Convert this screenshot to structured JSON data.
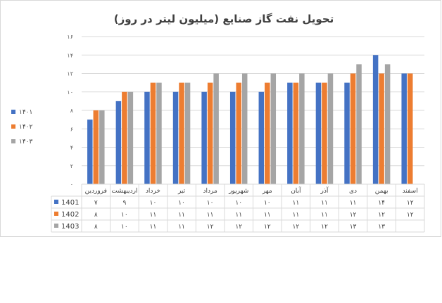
{
  "chart_data": {
    "type": "bar",
    "title": "تحویل نفت گاز صنایع (میلیون لیتر در روز)",
    "categories": [
      "فروردین",
      "اردیبهشت",
      "خرداد",
      "تیر",
      "مرداد",
      "شهریور",
      "مهر",
      "آبان",
      "آذر",
      "دی",
      "بهمن",
      "اسفند"
    ],
    "series": [
      {
        "name": "1401",
        "legend_label": "۱۴۰۱",
        "color": "#4472c4",
        "values": [
          7,
          9,
          10,
          10,
          10,
          10,
          10,
          11,
          11,
          11,
          14,
          12
        ]
      },
      {
        "name": "1402",
        "legend_label": "۱۴۰۲",
        "color": "#ed7d31",
        "values": [
          8,
          10,
          11,
          11,
          11,
          11,
          11,
          11,
          11,
          12,
          12,
          12
        ]
      },
      {
        "name": "1403",
        "legend_label": "۱۴۰۳",
        "color": "#a5a5a5",
        "values": [
          8,
          10,
          11,
          11,
          12,
          12,
          12,
          12,
          12,
          13,
          13,
          null
        ]
      }
    ],
    "ylim": [
      0,
      16
    ],
    "yticks": [
      0,
      2,
      4,
      6,
      8,
      10,
      12,
      14,
      16
    ],
    "ytick_labels": [
      "۰",
      "۲",
      "۴",
      "۶",
      "۸",
      "۱۰",
      "۱۲",
      "۱۴",
      "۱۶"
    ],
    "grid": true,
    "legend": "left",
    "data_table": true
  }
}
